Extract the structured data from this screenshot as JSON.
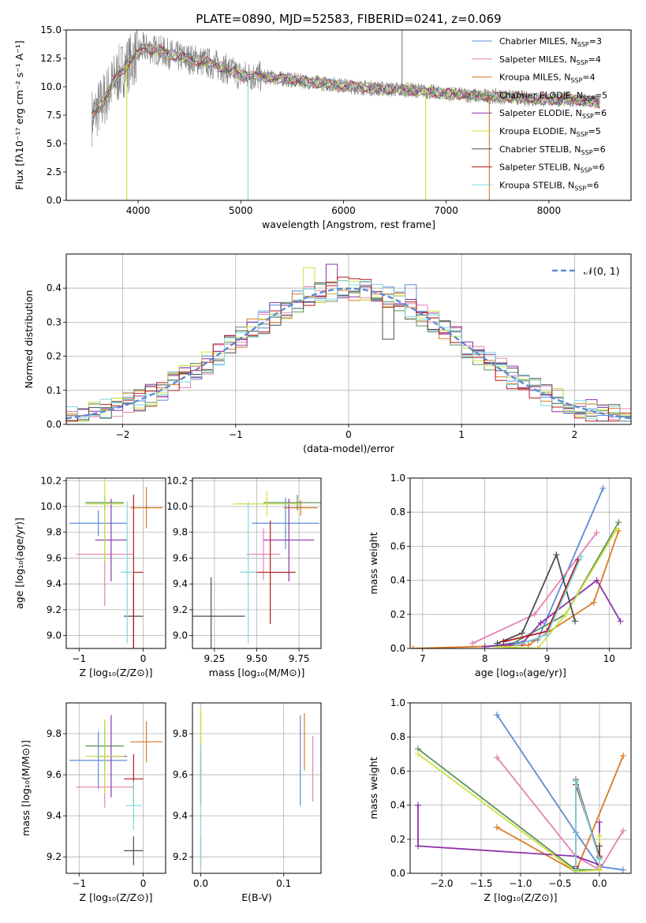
{
  "series_colors": {
    "chabrier_miles": "#5b8bd6",
    "salpeter_miles": "#e582b2",
    "kroupa_miles": "#dc7a23",
    "chabrier_elodie": "#5e8f5e",
    "salpeter_elodie": "#8d34a8",
    "kroupa_elodie": "#c9e33f",
    "chabrier_stelib": "#4d4d4d",
    "salpeter_stelib": "#b31b1b",
    "kroupa_stelib": "#7fd8e2",
    "data_gray": "#808080"
  },
  "chart_data": [
    {
      "id": "spectrum",
      "type": "line",
      "title": "PLATE=0890, MJD=52583, FIBERID=0241, z=0.069",
      "xlabel": "wavelength [Angstrom, rest frame]",
      "ylabel": "Flux [fλ10⁻¹⁷ erg cm⁻² s⁻¹ A⁻¹]",
      "xlim": [
        3300,
        8800
      ],
      "ylim": [
        0,
        15
      ],
      "xticks": [
        "4000",
        "5000",
        "6000",
        "7000",
        "8000"
      ],
      "yticks": [
        "0.0",
        "2.5",
        "5.0",
        "7.5",
        "10.0",
        "12.5",
        "15.0"
      ],
      "grid": false,
      "legend_position": "top-right",
      "legend": [
        {
          "base": "Chabrier MILES, N",
          "sub": "SSP",
          "tail": "=3",
          "color": "chabrier_miles"
        },
        {
          "base": "Salpeter MILES, N",
          "sub": "SSP",
          "tail": "=4",
          "color": "salpeter_miles"
        },
        {
          "base": "Kroupa MILES, N",
          "sub": "SSP",
          "tail": "=4",
          "color": "kroupa_miles"
        },
        {
          "base": "Chabrier ELODIE, N",
          "sub": "SSP",
          "tail": "=5",
          "color": "chabrier_elodie"
        },
        {
          "base": "Salpeter ELODIE, N",
          "sub": "SSP",
          "tail": "=6",
          "color": "salpeter_elodie"
        },
        {
          "base": "Kroupa ELODIE, N",
          "sub": "SSP",
          "tail": "=5",
          "color": "kroupa_elodie"
        },
        {
          "base": "Chabrier STELIB, N",
          "sub": "SSP",
          "tail": "=6",
          "color": "chabrier_stelib"
        },
        {
          "base": "Salpeter STELIB, N",
          "sub": "SSP",
          "tail": "=6",
          "color": "salpeter_stelib"
        },
        {
          "base": "Kroupa STELIB, N",
          "sub": "SSP",
          "tail": "=6",
          "color": "kroupa_stelib"
        }
      ],
      "continuum": {
        "x": [
          3550,
          3650,
          3800,
          3950,
          4050,
          4200,
          4400,
          4600,
          4800,
          5000,
          5200,
          5500,
          5800,
          6100,
          6400,
          6700,
          7000,
          7300,
          7600,
          7900,
          8200,
          8500
        ],
        "y": [
          7.3,
          8.6,
          11.0,
          12.5,
          13.4,
          13.2,
          12.6,
          12.3,
          11.8,
          11.0,
          10.9,
          10.6,
          10.3,
          10.0,
          9.8,
          9.7,
          9.4,
          9.2,
          9.1,
          8.9,
          8.9,
          8.6
        ]
      },
      "features": [
        {
          "model": "kroupa_elodie",
          "x": 3890,
          "y": 0
        },
        {
          "model": "kroupa_stelib",
          "x": 5070,
          "y": 0
        },
        {
          "model": "kroupa_elodie",
          "x": 6800,
          "y": 0
        },
        {
          "model": "kroupa_miles",
          "x": 7420,
          "y": 0
        },
        {
          "model": "data_gray",
          "x": 6570,
          "y": 15
        }
      ]
    },
    {
      "id": "residuals",
      "type": "histogram",
      "xlabel": "(data-model)/error",
      "ylabel": "Normed distribution",
      "xlim": [
        -2.5,
        2.5
      ],
      "ylim": [
        0,
        0.5
      ],
      "xticks": [
        "−2",
        "−1",
        "0",
        "1",
        "2"
      ],
      "yticks": [
        "0.0",
        "0.1",
        "0.2",
        "0.3",
        "0.4"
      ],
      "grid": true,
      "bin_width": 0.1,
      "legend_position": "top-right",
      "legend": [
        {
          "label": "𝒩(0, 1)",
          "color": "chabrier_miles",
          "style": "dashed"
        }
      ],
      "peak_samples": [
        {
          "model": "kroupa_elodie",
          "x": -0.35,
          "y": 0.46
        },
        {
          "model": "salpeter_elodie",
          "x": -0.15,
          "y": 0.47
        },
        {
          "model": "chabrier_miles",
          "x": 0.55,
          "y": 0.41
        },
        {
          "model": "chabrier_stelib",
          "x": 0.35,
          "y": 0.25
        }
      ]
    },
    {
      "id": "age_vs_z",
      "type": "errorbar",
      "xlabel": "Z [log₁₀(Z/Z⊙)]",
      "ylabel": "age  [log₁₀(age/yr)]",
      "xlim": [
        -1.2,
        0.35
      ],
      "ylim": [
        8.9,
        10.22
      ],
      "xticks": [
        "−1",
        "0"
      ],
      "yticks": [
        "9.0",
        "9.2",
        "9.4",
        "9.6",
        "9.8",
        "10.0",
        "10.2"
      ],
      "grid": true,
      "points": [
        {
          "model": "chabrier_miles",
          "x": -0.7,
          "xerr": 0.45,
          "y": 9.87,
          "yerr": 0.1
        },
        {
          "model": "salpeter_miles",
          "x": -0.6,
          "xerr": 0.45,
          "y": 9.63,
          "yerr": 0.4
        },
        {
          "model": "kroupa_miles",
          "x": 0.05,
          "xerr": 0.25,
          "y": 9.99,
          "yerr": 0.16
        },
        {
          "model": "chabrier_elodie",
          "x": -0.6,
          "xerr": 0.3,
          "y": 10.03,
          "yerr": 0.06
        },
        {
          "model": "salpeter_elodie",
          "x": -0.5,
          "xerr": 0.25,
          "y": 9.74,
          "yerr": 0.32
        },
        {
          "model": "kroupa_elodie",
          "x": -0.6,
          "xerr": 0.3,
          "y": 10.02,
          "yerr": 0.45
        },
        {
          "model": "chabrier_stelib",
          "x": -0.15,
          "xerr": 0.15,
          "y": 9.15,
          "yerr": 0.3
        },
        {
          "model": "salpeter_stelib",
          "x": -0.15,
          "xerr": 0.15,
          "y": 9.49,
          "yerr": 0.6
        },
        {
          "model": "kroupa_stelib",
          "x": -0.25,
          "xerr": 0.1,
          "y": 9.49,
          "yerr": 0.55
        }
      ]
    },
    {
      "id": "age_vs_mass",
      "type": "errorbar",
      "xlabel": "mass [log₁₀(M/M⊙)]",
      "ylabel": "",
      "xlim": [
        9.12,
        9.88
      ],
      "ylim": [
        8.9,
        10.22
      ],
      "xticks": [
        "9.25",
        "9.50",
        "9.75"
      ],
      "yticks": [
        "9.0",
        "9.2",
        "9.4",
        "9.6",
        "9.8",
        "10.0",
        "10.2"
      ],
      "grid": true,
      "points": [
        {
          "model": "chabrier_miles",
          "x": 9.67,
          "xerr": 0.2,
          "y": 9.87,
          "yerr": 0.2
        },
        {
          "model": "salpeter_miles",
          "x": 9.54,
          "xerr": 0.1,
          "y": 9.63,
          "yerr": 0.2
        },
        {
          "model": "kroupa_miles",
          "x": 9.76,
          "xerr": 0.1,
          "y": 9.99,
          "yerr": 0.06
        },
        {
          "model": "chabrier_elodie",
          "x": 9.74,
          "xerr": 0.2,
          "y": 10.03,
          "yerr": 0.06
        },
        {
          "model": "salpeter_elodie",
          "x": 9.69,
          "xerr": 0.15,
          "y": 9.74,
          "yerr": 0.32
        },
        {
          "model": "kroupa_elodie",
          "x": 9.56,
          "xerr": 0.2,
          "y": 10.02,
          "yerr": 0.1
        },
        {
          "model": "chabrier_stelib",
          "x": 9.23,
          "xerr": 0.2,
          "y": 9.15,
          "yerr": 0.3
        },
        {
          "model": "salpeter_stelib",
          "x": 9.58,
          "xerr": 0.15,
          "y": 9.49,
          "yerr": 0.4
        },
        {
          "model": "kroupa_stelib",
          "x": 9.45,
          "xerr": 0.05,
          "y": 9.49,
          "yerr": 0.55
        }
      ]
    },
    {
      "id": "weight_vs_age",
      "type": "line",
      "xlabel": "age  [log₁₀(age/yr)]",
      "ylabel": "mass weight",
      "xlim": [
        6.8,
        10.35
      ],
      "ylim": [
        0,
        1.0
      ],
      "xticks": [
        "7",
        "8",
        "9",
        "10"
      ],
      "yticks": [
        "0.0",
        "0.2",
        "0.4",
        "0.6",
        "0.8",
        "1.0"
      ],
      "grid": true,
      "series": [
        {
          "model": "chabrier_miles",
          "x": [
            8.0,
            8.85,
            9.9
          ],
          "y": [
            0.01,
            0.05,
            0.94
          ]
        },
        {
          "model": "salpeter_miles",
          "x": [
            7.8,
            8.8,
            9.8
          ],
          "y": [
            0.03,
            0.2,
            0.68
          ]
        },
        {
          "model": "kroupa_miles",
          "x": [
            6.85,
            8.7,
            9.75,
            10.15
          ],
          "y": [
            0.0,
            0.02,
            0.27,
            0.69
          ]
        },
        {
          "model": "chabrier_elodie",
          "x": [
            8.4,
            9.3,
            10.15
          ],
          "y": [
            0.02,
            0.2,
            0.74
          ]
        },
        {
          "model": "salpeter_elodie",
          "x": [
            8.0,
            8.6,
            8.9,
            9.8,
            10.18
          ],
          "y": [
            0.01,
            0.03,
            0.15,
            0.4,
            0.16
          ]
        },
        {
          "model": "kroupa_elodie",
          "x": [
            8.2,
            8.85,
            9.3,
            10.12
          ],
          "y": [
            0.01,
            0.0,
            0.2,
            0.7
          ]
        },
        {
          "model": "chabrier_stelib",
          "x": [
            8.2,
            8.6,
            9.15,
            9.45
          ],
          "y": [
            0.03,
            0.09,
            0.55,
            0.16
          ]
        },
        {
          "model": "salpeter_stelib",
          "x": [
            8.3,
            9.0,
            9.5
          ],
          "y": [
            0.04,
            0.1,
            0.52
          ]
        },
        {
          "model": "kroupa_stelib",
          "x": [
            8.5,
            9.0,
            9.55
          ],
          "y": [
            0.02,
            0.08,
            0.54
          ]
        }
      ]
    },
    {
      "id": "mass_vs_z",
      "type": "errorbar",
      "xlabel": "Z [log₁₀(Z/Z⊙)]",
      "ylabel": "mass [log₁₀(M/M⊙)]",
      "xlim": [
        -1.2,
        0.35
      ],
      "ylim": [
        9.12,
        9.95
      ],
      "xticks": [
        "−1",
        "0"
      ],
      "yticks": [
        "9.2",
        "9.4",
        "9.6",
        "9.8"
      ],
      "grid": true,
      "points": [
        {
          "model": "chabrier_miles",
          "x": -0.7,
          "xerr": 0.45,
          "y": 9.67,
          "yerr": 0.14
        },
        {
          "model": "salpeter_miles",
          "x": -0.6,
          "xerr": 0.45,
          "y": 9.54,
          "yerr": 0.1
        },
        {
          "model": "kroupa_miles",
          "x": 0.05,
          "xerr": 0.25,
          "y": 9.76,
          "yerr": 0.1
        },
        {
          "model": "chabrier_elodie",
          "x": -0.6,
          "xerr": 0.3,
          "y": 9.74,
          "yerr": 0.12
        },
        {
          "model": "salpeter_elodie",
          "x": -0.5,
          "xerr": 0.25,
          "y": 9.69,
          "yerr": 0.2
        },
        {
          "model": "kroupa_elodie",
          "x": -0.6,
          "xerr": 0.3,
          "y": 9.69,
          "yerr": 0.18
        },
        {
          "model": "chabrier_stelib",
          "x": -0.15,
          "xerr": 0.15,
          "y": 9.23,
          "yerr": 0.07
        },
        {
          "model": "salpeter_stelib",
          "x": -0.15,
          "xerr": 0.15,
          "y": 9.58,
          "yerr": 0.12
        },
        {
          "model": "kroupa_stelib",
          "x": -0.15,
          "xerr": 0.12,
          "y": 9.45,
          "yerr": 0.12
        }
      ]
    },
    {
      "id": "mass_vs_ebv",
      "type": "errorbar",
      "xlabel": "E(B-V)",
      "ylabel": "",
      "xlim": [
        -0.01,
        0.145
      ],
      "ylim": [
        9.12,
        9.95
      ],
      "xticks": [
        "0.0",
        "0.1"
      ],
      "yticks": [
        "9.2",
        "9.4",
        "9.6",
        "9.8"
      ],
      "grid": true,
      "points": [
        {
          "model": "chabrier_miles",
          "x": 0.12,
          "xerr": 0,
          "y": 9.67,
          "yerr": 0.22
        },
        {
          "model": "salpeter_miles",
          "x": 0.135,
          "xerr": 0,
          "y": 9.63,
          "yerr": 0.16
        },
        {
          "model": "kroupa_miles",
          "x": 0.125,
          "xerr": 0,
          "y": 9.76,
          "yerr": 0.14
        },
        {
          "model": "salpeter_elodie",
          "x": 0.0,
          "xerr": 0,
          "y": 9.69,
          "yerr": 0.22
        },
        {
          "model": "kroupa_elodie",
          "x": 0.0,
          "xerr": 0,
          "y": 9.69,
          "yerr": 0.24
        },
        {
          "model": "chabrier_stelib",
          "x": 0.0,
          "xerr": 0,
          "y": 9.23,
          "yerr": 0.07
        },
        {
          "model": "salpeter_stelib",
          "x": 0.0,
          "xerr": 0,
          "y": 9.58,
          "yerr": 0.12
        },
        {
          "model": "kroupa_stelib",
          "x": 0.0,
          "xerr": 0,
          "y": 9.45,
          "yerr": 0.3
        }
      ]
    },
    {
      "id": "weight_vs_z",
      "type": "line",
      "xlabel": "Z [log₁₀(Z/Z⊙)]",
      "ylabel": "mass weight",
      "xlim": [
        -2.4,
        0.4
      ],
      "ylim": [
        0,
        1.0
      ],
      "xticks": [
        "−2.0",
        "−1.5",
        "−1.0",
        "−0.5",
        "0.0"
      ],
      "yticks": [
        "0.0",
        "0.2",
        "0.4",
        "0.6",
        "0.8",
        "1.0"
      ],
      "grid": true,
      "series": [
        {
          "model": "chabrier_miles",
          "x": [
            -1.3,
            -0.3,
            0.0,
            0.3
          ],
          "y": [
            0.93,
            0.24,
            0.04,
            0.02
          ]
        },
        {
          "model": "salpeter_miles",
          "x": [
            -1.3,
            -0.3,
            0.0,
            0.3
          ],
          "y": [
            0.68,
            0.1,
            0.02,
            0.25
          ]
        },
        {
          "model": "kroupa_miles",
          "x": [
            -1.3,
            -0.3,
            0.3
          ],
          "y": [
            0.27,
            0.01,
            0.69
          ]
        },
        {
          "model": "chabrier_elodie",
          "x": [
            -2.3,
            -0.3,
            0.0
          ],
          "y": [
            0.73,
            0.02,
            0.02
          ]
        },
        {
          "model": "salpeter_elodie",
          "x": [
            -2.3,
            -2.3,
            -0.3,
            0.0,
            0.0
          ],
          "y": [
            0.4,
            0.16,
            0.1,
            0.05,
            0.3
          ]
        },
        {
          "model": "kroupa_elodie",
          "x": [
            -2.3,
            -0.3,
            0.0,
            0.0
          ],
          "y": [
            0.7,
            0.01,
            0.02,
            0.22
          ]
        },
        {
          "model": "chabrier_stelib",
          "x": [
            -0.3,
            -0.3,
            0.0,
            0.0
          ],
          "y": [
            0.03,
            0.55,
            0.09,
            0.16
          ]
        },
        {
          "model": "salpeter_stelib",
          "x": [
            -0.3,
            -0.3,
            0.0
          ],
          "y": [
            0.04,
            0.52,
            0.1
          ]
        },
        {
          "model": "kroupa_stelib",
          "x": [
            -0.3,
            -0.3,
            0.0
          ],
          "y": [
            0.02,
            0.54,
            0.08
          ]
        }
      ]
    }
  ]
}
